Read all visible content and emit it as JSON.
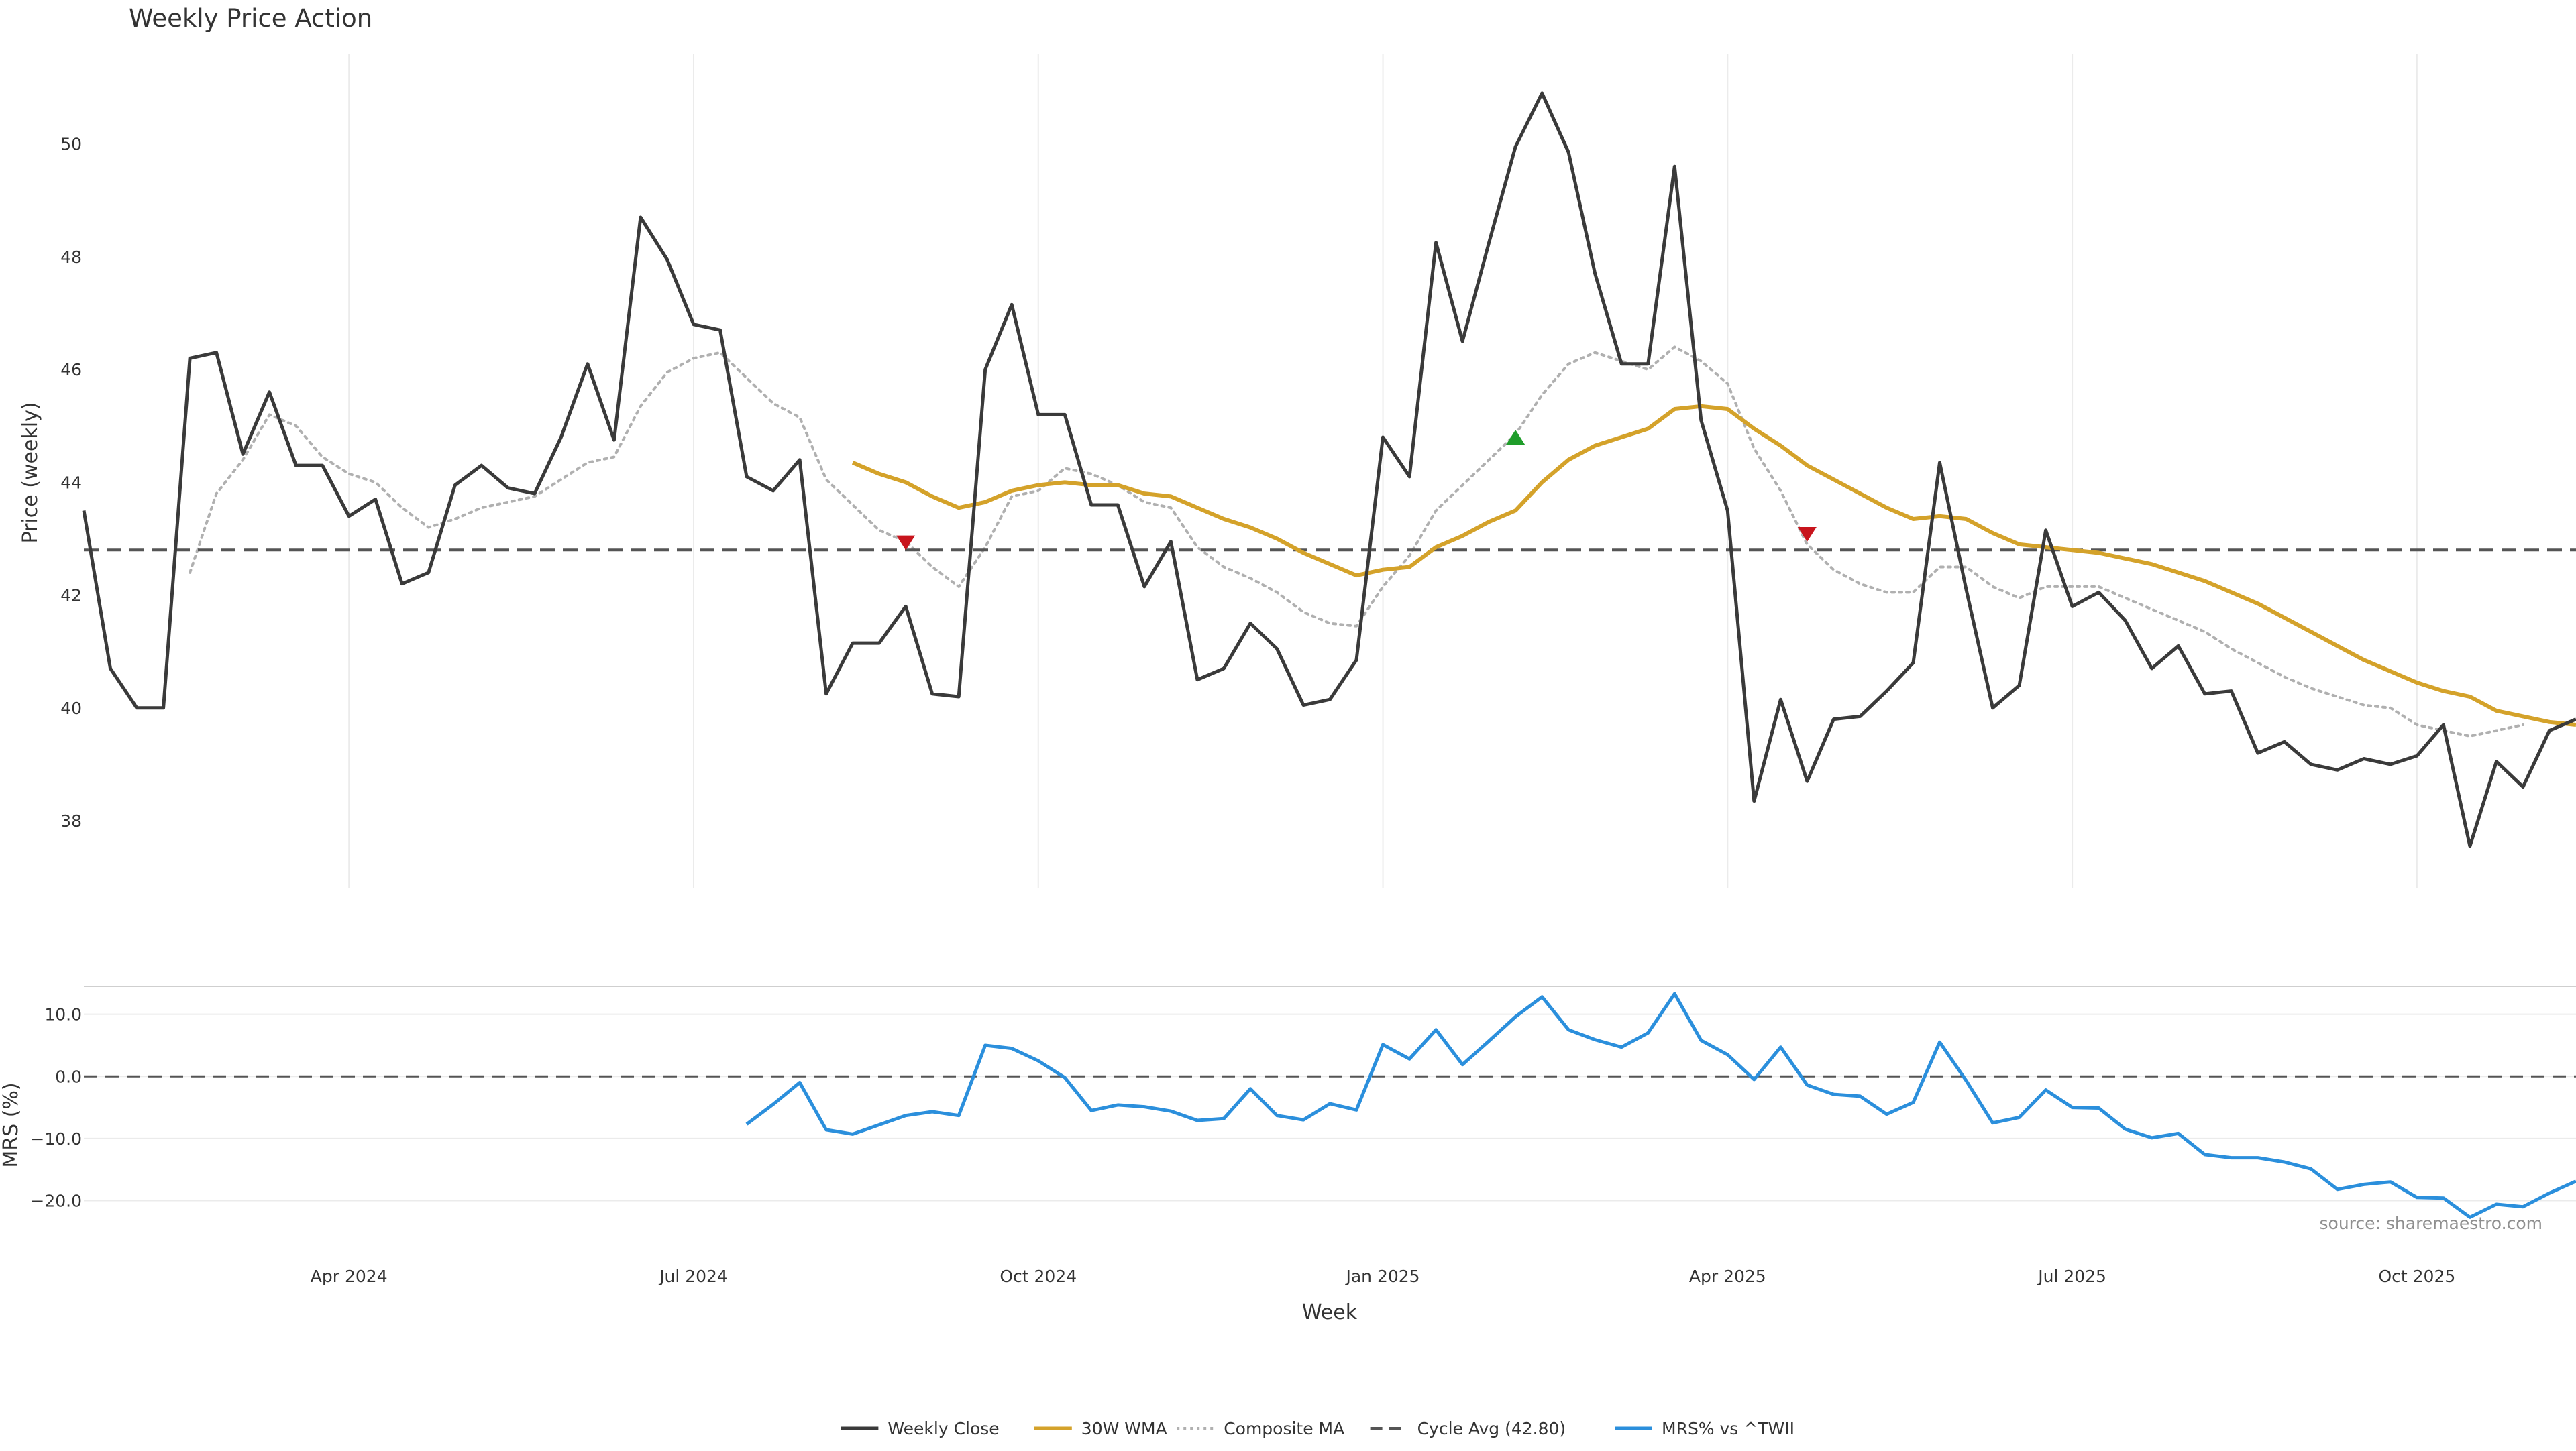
{
  "colors": {
    "close": "#3a3a3a",
    "wma": "#d4a22a",
    "composite": "#b0b0b0",
    "cycle": "#555555",
    "mrs": "#2b8fdc",
    "marker_sell": "#c8141c",
    "marker_buy": "#1f9d2a",
    "grid": "#ebebeb"
  },
  "chart_data": [
    {
      "type": "line",
      "title": "Weekly Price Action",
      "ylabel": "Price (weekly)",
      "ylim": [
        36.8,
        51.6
      ],
      "yticks": [
        38,
        40,
        42,
        44,
        46,
        48,
        50
      ],
      "x_start": "2024-01-08",
      "x_interval_days": 7,
      "series": [
        {
          "name": "Weekly Close",
          "values": [
            43.5,
            40.7,
            40.0,
            40.0,
            46.2,
            46.3,
            44.5,
            45.6,
            44.3,
            44.3,
            43.4,
            43.7,
            42.2,
            42.4,
            43.95,
            44.3,
            43.9,
            43.8,
            44.8,
            46.1,
            44.75,
            48.7,
            47.95,
            46.8,
            46.7,
            44.1,
            43.85,
            44.4,
            40.25,
            41.15,
            41.15,
            41.8,
            40.25,
            40.2,
            46.0,
            47.15,
            45.2,
            45.2,
            43.6,
            43.6,
            42.15,
            42.95,
            40.5,
            40.7,
            41.5,
            41.05,
            40.05,
            40.15,
            40.85,
            44.8,
            44.1,
            48.25,
            46.5,
            48.25,
            49.95,
            50.9,
            49.85,
            47.7,
            46.1,
            46.1,
            49.6,
            45.1,
            43.5,
            38.35,
            40.15,
            38.7,
            39.8,
            39.85,
            40.3,
            40.8,
            44.35,
            42.1,
            40.0,
            40.4,
            43.15,
            41.8,
            42.05,
            41.55,
            40.7,
            41.1,
            40.25,
            40.3,
            39.2,
            39.4,
            39.0,
            38.9,
            39.1,
            39.0,
            39.15,
            39.7,
            37.55,
            39.05,
            38.6,
            39.6,
            39.8
          ]
        },
        {
          "name": "30W WMA",
          "start_index": 29,
          "values": [
            44.35,
            44.15,
            44.0,
            43.75,
            43.55,
            43.65,
            43.85,
            43.95,
            44.0,
            43.95,
            43.95,
            43.8,
            43.75,
            43.55,
            43.35,
            43.2,
            43.0,
            42.75,
            42.55,
            42.35,
            42.45,
            42.5,
            42.85,
            43.05,
            43.3,
            43.5,
            44.0,
            44.4,
            44.65,
            44.8,
            44.95,
            45.3,
            45.35,
            45.3,
            44.95,
            44.65,
            44.3,
            44.05,
            43.8,
            43.55,
            43.35,
            43.4,
            43.35,
            43.1,
            42.9,
            42.85,
            42.8,
            42.75,
            42.65,
            42.55,
            42.4,
            42.25,
            42.05,
            41.85,
            41.6,
            41.35,
            41.1,
            40.85,
            40.65,
            40.45,
            40.3,
            40.2,
            39.95,
            39.85,
            39.75,
            39.7
          ]
        },
        {
          "name": "Composite MA",
          "start_index": 4,
          "values": [
            42.4,
            43.8,
            44.4,
            45.2,
            45.0,
            44.45,
            44.15,
            44.0,
            43.55,
            43.2,
            43.35,
            43.55,
            43.65,
            43.75,
            44.05,
            44.35,
            44.45,
            45.35,
            45.95,
            46.2,
            46.3,
            45.85,
            45.4,
            45.15,
            44.05,
            43.6,
            43.15,
            42.95,
            42.5,
            42.15,
            42.85,
            43.75,
            43.85,
            44.25,
            44.15,
            43.95,
            43.65,
            43.55,
            42.85,
            42.5,
            42.3,
            42.05,
            41.7,
            41.5,
            41.45,
            42.15,
            42.7,
            43.5,
            43.95,
            44.4,
            44.85,
            45.55,
            46.1,
            46.3,
            46.15,
            46.0,
            46.4,
            46.15,
            45.75,
            44.6,
            43.85,
            42.9,
            42.45,
            42.2,
            42.05,
            42.05,
            42.5,
            42.5,
            42.15,
            41.95,
            42.15,
            42.15,
            42.15,
            41.95,
            41.75,
            41.55,
            41.35,
            41.05,
            40.8,
            40.55,
            40.35,
            40.2,
            40.05,
            40.0,
            39.7,
            39.6,
            39.5,
            39.6,
            39.7
          ]
        },
        {
          "name": "Cycle Avg (42.80)",
          "constant": 42.8
        }
      ],
      "markers": [
        {
          "type": "sell",
          "index": 31,
          "value": 42.95
        },
        {
          "type": "buy",
          "index": 54,
          "value": 44.8
        },
        {
          "type": "sell",
          "index": 65,
          "value": 43.1
        }
      ]
    },
    {
      "type": "line",
      "ylabel": "MRS (%)",
      "xlabel": "Week",
      "ylim": [
        -26,
        14.5
      ],
      "yticks": [
        -20.0,
        -10.0,
        0.0,
        10.0
      ],
      "ytick_labels": [
        "−20.0",
        "−10.0",
        "0.0",
        "10.0"
      ],
      "zero_line": 0,
      "series": [
        {
          "name": "MRS% vs ^TWII",
          "start_index": 25,
          "values": [
            -7.7,
            -4.5,
            -1.0,
            -8.6,
            -9.3,
            -7.8,
            -6.3,
            -5.7,
            -6.3,
            5.0,
            4.5,
            2.5,
            -0.2,
            -5.5,
            -4.6,
            -4.9,
            -5.6,
            -7.1,
            -6.8,
            -2.0,
            -6.3,
            -7.0,
            -4.4,
            -5.4,
            5.1,
            2.8,
            7.5,
            1.9,
            5.7,
            9.6,
            12.8,
            7.5,
            5.9,
            4.7,
            7.0,
            13.3,
            5.8,
            3.5,
            -0.5,
            4.7,
            -1.4,
            -2.9,
            -3.2,
            -6.1,
            -4.2,
            5.5,
            -0.7,
            -7.5,
            -6.6,
            -2.2,
            -5.0,
            -5.1,
            -8.5,
            -9.9,
            -9.2,
            -12.6,
            -13.1,
            -13.1,
            -13.8,
            -14.9,
            -18.2,
            -17.4,
            -17.0,
            -19.5,
            -19.6,
            -22.7,
            -20.6,
            -21.0,
            -18.8,
            -16.9
          ]
        }
      ]
    }
  ],
  "x_axis": {
    "label": "Week",
    "ticks": [
      {
        "label": "Apr 2024",
        "index": 10
      },
      {
        "label": "Jul 2024",
        "index": 23
      },
      {
        "label": "Oct 2024",
        "index": 36
      },
      {
        "label": "Jan 2025",
        "index": 49
      },
      {
        "label": "Apr 2025",
        "index": 62
      },
      {
        "label": "Jul 2025",
        "index": 75
      },
      {
        "label": "Oct 2025",
        "index": 88
      }
    ]
  },
  "legend": {
    "placement": "bottom-center",
    "items": [
      {
        "label": "Weekly Close",
        "style": "solid",
        "color_key": "close"
      },
      {
        "label": "30W WMA",
        "style": "solid",
        "color_key": "wma"
      },
      {
        "label": "Composite MA",
        "style": "dotted",
        "color_key": "composite"
      },
      {
        "label": "Cycle Avg (42.80)",
        "style": "dashed",
        "color_key": "cycle"
      },
      {
        "label": "MRS% vs ^TWII",
        "style": "solid",
        "color_key": "mrs"
      }
    ]
  },
  "source_note": "source: sharemaestro.com"
}
